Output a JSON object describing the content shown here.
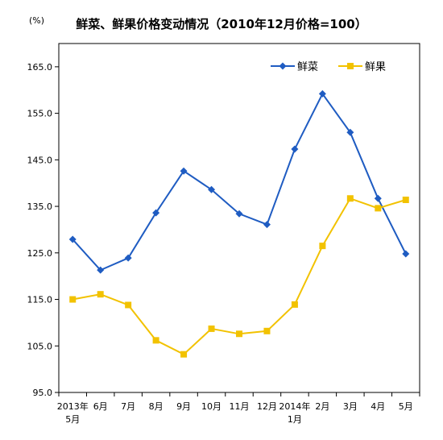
{
  "chart_data": {
    "type": "line",
    "title": "鲜菜、鲜果价格变动情况（2010年12月价格=100）",
    "unit_label": "(%)",
    "categories": [
      [
        "2013年",
        "5月"
      ],
      [
        "6月"
      ],
      [
        "7月"
      ],
      [
        "8月"
      ],
      [
        "9月"
      ],
      [
        "10月"
      ],
      [
        "11月"
      ],
      [
        "12月"
      ],
      [
        "2014年",
        "1月"
      ],
      [
        "2月"
      ],
      [
        "3月"
      ],
      [
        "4月"
      ],
      [
        "5月"
      ]
    ],
    "ylim": [
      95.0,
      170.0
    ],
    "yticks": [
      "95.0",
      "105.0",
      "115.0",
      "125.0",
      "135.0",
      "145.0",
      "155.0",
      "165.0"
    ],
    "grid": false,
    "legend_position": "top-right",
    "series": [
      {
        "name": "鲜菜",
        "color": "#1F5CC2",
        "marker": "diamond",
        "values": [
          127.9,
          121.3,
          123.9,
          133.6,
          142.6,
          138.6,
          133.4,
          131.1,
          147.3,
          159.2,
          150.9,
          136.7,
          124.8
        ]
      },
      {
        "name": "鲜果",
        "color": "#F2C200",
        "marker": "square",
        "values": [
          115.0,
          116.1,
          113.8,
          106.2,
          103.2,
          108.7,
          107.6,
          108.2,
          113.9,
          126.5,
          136.7,
          134.6,
          136.4
        ]
      }
    ]
  }
}
